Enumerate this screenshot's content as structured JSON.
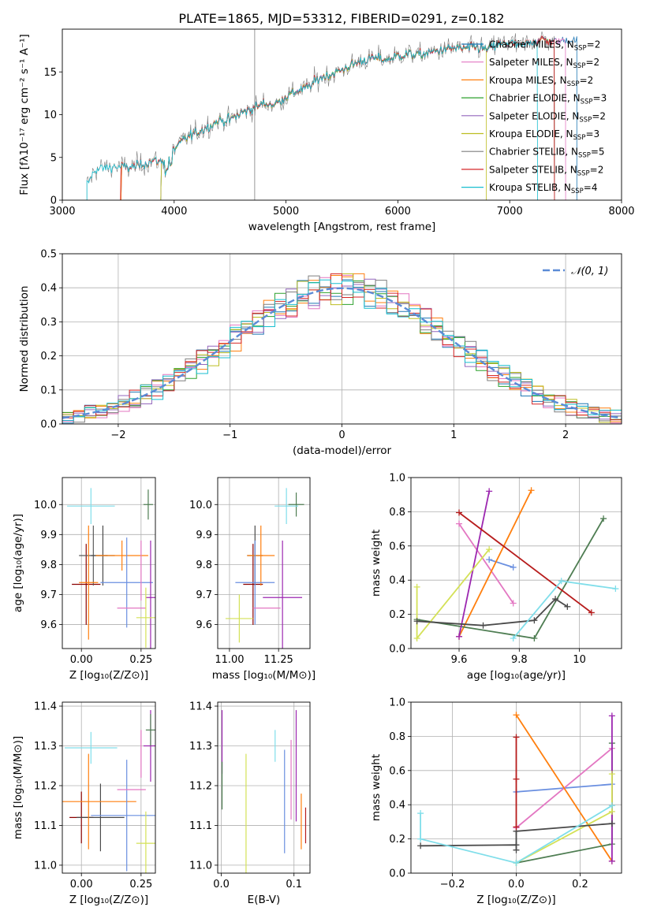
{
  "title": "PLATE=1865, MJD=53312, FIBERID=0291, z=0.182",
  "colors": {
    "chabrier_miles": "#1f77b4",
    "salpeter_miles": "#e377c2",
    "kroupa_miles": "#ff7f0e",
    "chabrier_elodie": "#2ca02c",
    "salpeter_elodie": "#9467bd",
    "kroupa_elodie": "#bcbd22",
    "chabrier_stelib": "#7f7f7f",
    "salpeter_stelib": "#d62728",
    "kroupa_stelib": "#17becf",
    "gaussian": "#5b8bd6",
    "grid": "#b0b0b0"
  },
  "chart_data": [
    {
      "id": "spectrum",
      "type": "line",
      "xlabel": "wavelength [Angstrom, rest frame]",
      "ylabel": "Flux [fλ10⁻¹⁷ erg cm⁻² s⁻¹ A⁻¹]",
      "xlim": [
        3000,
        8000
      ],
      "ylim": [
        0,
        20
      ],
      "xticks": [
        3000,
        4000,
        5000,
        6000,
        7000,
        8000
      ],
      "yticks": [
        0,
        5,
        10,
        15
      ],
      "grid": false,
      "legend_position": "top-right",
      "series": [
        {
          "name": "Chabrier MILES, N_SSP=2",
          "label_main": "Chabrier MILES, N",
          "label_sub": "SSP",
          "label_tail": "=2",
          "color": "#1f77b4"
        },
        {
          "name": "Salpeter MILES, N_SSP=2",
          "label_main": "Salpeter MILES, N",
          "label_sub": "SSP",
          "label_tail": "=2",
          "color": "#e377c2"
        },
        {
          "name": "Kroupa MILES, N_SSP=2",
          "label_main": "Kroupa MILES, N",
          "label_sub": "SSP",
          "label_tail": "=2",
          "color": "#ff7f0e"
        },
        {
          "name": "Chabrier ELODIE, N_SSP=3",
          "label_main": "Chabrier ELODIE, N",
          "label_sub": "SSP",
          "label_tail": "=3",
          "color": "#2ca02c"
        },
        {
          "name": "Salpeter ELODIE, N_SSP=2",
          "label_main": "Salpeter ELODIE, N",
          "label_sub": "SSP",
          "label_tail": "=2",
          "color": "#9467bd"
        },
        {
          "name": "Kroupa ELODIE, N_SSP=3",
          "label_main": "Kroupa ELODIE, N",
          "label_sub": "SSP",
          "label_tail": "=3",
          "color": "#bcbd22"
        },
        {
          "name": "Chabrier STELIB, N_SSP=5",
          "label_main": "Chabrier STELIB, N",
          "label_sub": "SSP",
          "label_tail": "=5",
          "color": "#7f7f7f"
        },
        {
          "name": "Salpeter STELIB, N_SSP=2",
          "label_main": "Salpeter STELIB, N",
          "label_sub": "SSP",
          "label_tail": "=2",
          "color": "#d62728"
        },
        {
          "name": "Kroupa STELIB, N_SSP=4",
          "label_main": "Kroupa STELIB, N",
          "label_sub": "SSP",
          "label_tail": "=4",
          "color": "#17becf"
        }
      ],
      "continuum": {
        "x": [
          3220,
          3300,
          3400,
          3500,
          3600,
          3700,
          3800,
          3900,
          4000,
          4100,
          4200,
          4300,
          4400,
          4500,
          4600,
          4700,
          4800,
          4900,
          5000,
          5100,
          5200,
          5300,
          5400,
          5500,
          5600,
          5700,
          5800,
          5900,
          6000,
          6100,
          6200,
          6300,
          6400,
          6500,
          6600,
          6700,
          6800,
          6900,
          7000,
          7100,
          7200,
          7300,
          7400,
          7500
        ],
        "y": [
          1.8,
          3.6,
          3.8,
          3.9,
          3.8,
          4.1,
          4.6,
          4.5,
          6.0,
          7.2,
          7.9,
          8.6,
          9.3,
          9.4,
          10.2,
          10.7,
          11.3,
          11.2,
          12.1,
          12.8,
          13.2,
          14.3,
          14.7,
          15.2,
          15.9,
          16.4,
          16.6,
          16.4,
          16.9,
          17.1,
          17.0,
          17.3,
          17.6,
          17.8,
          17.7,
          17.9,
          17.6,
          18.2,
          18.4,
          18.0,
          18.6,
          18.8,
          18.5,
          18.7
        ]
      },
      "series_range": [
        [
          3525,
          7600
        ],
        [
          3525,
          7500
        ],
        [
          3525,
          7400
        ],
        [
          3880,
          7400
        ],
        [
          3880,
          7400
        ],
        [
          3880,
          6790
        ],
        [
          3220,
          7400
        ],
        [
          3520,
          7400
        ],
        [
          3220,
          7250
        ]
      ]
    },
    {
      "id": "residuals",
      "type": "step",
      "xlabel": "(data-model)/error",
      "ylabel": "Normed distribution",
      "xlim": [
        -2.5,
        2.5
      ],
      "ylim": [
        0,
        0.5
      ],
      "xticks": [
        -2,
        -1,
        0,
        1,
        2
      ],
      "yticks": [
        0.0,
        0.1,
        0.2,
        0.3,
        0.4,
        0.5
      ],
      "grid": true,
      "legend_position": "top-right",
      "gaussian_label": "𝒩(0, 1)",
      "bin_start": -2.5,
      "bin_width": 0.1
    },
    {
      "id": "age-vs-Z",
      "type": "errorbar",
      "xlabel": "Z [log₁₀(Z/Z⊙)]",
      "ylabel": "age  [log₁₀(age/yr)]",
      "xlim": [
        -0.08,
        0.31
      ],
      "ylim": [
        9.52,
        10.09
      ],
      "xticks": [
        0.0,
        0.25
      ],
      "xtick_labels": [
        "0.00",
        "0.25"
      ],
      "yticks": [
        9.6,
        9.7,
        9.8,
        9.9,
        10.0
      ],
      "grid": true,
      "points": [
        {
          "x": 0.02,
          "y": 9.734,
          "xerr": 0.06,
          "yerr": 0.135,
          "color": "#8b0000"
        },
        {
          "x": 0.05,
          "y": 9.83,
          "xerr": 0.06,
          "yerr": 0.1,
          "color": "#5b5b5b"
        },
        {
          "x": 0.09,
          "y": 9.83,
          "xerr": 0.05,
          "yerr": 0.1,
          "color": "#4a4a4a"
        },
        {
          "x": 0.03,
          "y": 9.74,
          "xerr": 0.04,
          "yerr": 0.19,
          "color": "#ff7f0e"
        },
        {
          "x": 0.17,
          "y": 9.83,
          "xerr": 0.11,
          "yerr": 0.05,
          "color": "#ff7f0e"
        },
        {
          "x": 0.19,
          "y": 9.74,
          "xerr": 0.11,
          "yerr": 0.15,
          "color": "#6a8fe0"
        },
        {
          "x": 0.21,
          "y": 9.655,
          "xerr": 0.06,
          "yerr": 0.0,
          "color": "#e377c2"
        },
        {
          "x": 0.25,
          "y": 9.78,
          "xerr": 0.0,
          "yerr": 0.1,
          "color": "#e377c2"
        },
        {
          "x": 0.29,
          "y": 9.69,
          "xerr": 0.02,
          "yerr": 0.19,
          "color": "#9c27b0"
        },
        {
          "x": 0.27,
          "y": 9.623,
          "xerr": 0.04,
          "yerr": 0.1,
          "color": "#d4e157"
        },
        {
          "x": 0.28,
          "y": 10.0,
          "xerr": 0.02,
          "yerr": 0.05,
          "color": "#4e7d52"
        },
        {
          "x": 0.04,
          "y": 9.995,
          "xerr": 0.1,
          "yerr": 0.06,
          "color": "#80deea"
        }
      ]
    },
    {
      "id": "age-vs-mass",
      "type": "errorbar",
      "xlabel": "mass [log₁₀(M/M⊙)]",
      "ylabel": "",
      "xlim": [
        10.94,
        11.41
      ],
      "ylim": [
        9.52,
        10.09
      ],
      "xticks": [
        11.0,
        11.25
      ],
      "xtick_labels": [
        "11.00",
        "11.25"
      ],
      "yticks": [
        9.6,
        9.7,
        9.8,
        9.9,
        10.0
      ],
      "grid": true,
      "points": [
        {
          "x": 11.12,
          "y": 9.734,
          "xerr": 0.05,
          "yerr": 0.135,
          "color": "#8b0000"
        },
        {
          "x": 11.13,
          "y": 9.83,
          "xerr": 0.04,
          "yerr": 0.1,
          "color": "#4a4a4a"
        },
        {
          "x": 11.16,
          "y": 9.83,
          "xerr": 0.07,
          "yerr": 0.1,
          "color": "#ff7f0e"
        },
        {
          "x": 11.13,
          "y": 9.74,
          "xerr": 0.1,
          "yerr": 0.14,
          "color": "#6a8fe0"
        },
        {
          "x": 11.19,
          "y": 9.655,
          "xerr": 0.07,
          "yerr": 0.0,
          "color": "#e377c2"
        },
        {
          "x": 11.27,
          "y": 9.69,
          "xerr": 0.1,
          "yerr": 0.19,
          "color": "#9c27b0"
        },
        {
          "x": 11.05,
          "y": 9.62,
          "xerr": 0.07,
          "yerr": 0.08,
          "color": "#d4e157"
        },
        {
          "x": 11.34,
          "y": 10.0,
          "xerr": 0.04,
          "yerr": 0.04,
          "color": "#4e7d52"
        },
        {
          "x": 11.29,
          "y": 9.995,
          "xerr": 0.06,
          "yerr": 0.06,
          "color": "#80deea"
        }
      ]
    },
    {
      "id": "weight-vs-age",
      "type": "line",
      "xlabel": "age  [log₁₀(age/yr)]",
      "ylabel": "mass weight",
      "xlim": [
        9.44,
        10.14
      ],
      "ylim": [
        0,
        1
      ],
      "xticks": [
        9.6,
        9.8,
        10.0
      ],
      "yticks": [
        0.0,
        0.2,
        0.4,
        0.6,
        0.8,
        1.0
      ],
      "grid": true,
      "series": [
        {
          "color": "#6a8fe0",
          "x": [
            9.7,
            9.78
          ],
          "y": [
            0.52,
            0.475
          ]
        },
        {
          "color": "#e377c2",
          "x": [
            9.6,
            9.78
          ],
          "y": [
            0.73,
            0.265
          ]
        },
        {
          "color": "#ff7f0e",
          "x": [
            9.6,
            9.84
          ],
          "y": [
            0.07,
            0.925
          ]
        },
        {
          "color": "#4e7d52",
          "x": [
            9.46,
            9.85,
            10.08
          ],
          "y": [
            0.17,
            0.06,
            0.76
          ]
        },
        {
          "color": "#9c27b0",
          "x": [
            9.6,
            9.7
          ],
          "y": [
            0.07,
            0.92
          ]
        },
        {
          "color": "#d4e157",
          "x": [
            9.46,
            9.46,
            9.7
          ],
          "y": [
            0.36,
            0.06,
            0.58
          ]
        },
        {
          "color": "#4a4a4a",
          "x": [
            9.46,
            9.68,
            9.85,
            9.92,
            9.96
          ],
          "y": [
            0.16,
            0.135,
            0.165,
            0.29,
            0.245
          ]
        },
        {
          "color": "#b71c1c",
          "x": [
            9.6,
            10.04
          ],
          "y": [
            0.795,
            0.21
          ]
        },
        {
          "color": "#80deea",
          "x": [
            9.78,
            9.94,
            10.12
          ],
          "y": [
            0.06,
            0.395,
            0.35
          ]
        }
      ]
    },
    {
      "id": "mass-vs-Z",
      "type": "errorbar",
      "xlabel": "Z [log₁₀(Z/Z⊙)]",
      "ylabel": "mass [log₁₀(M/M⊙)]",
      "xlim": [
        -0.08,
        0.31
      ],
      "ylim": [
        10.98,
        11.41
      ],
      "xticks": [
        0.0,
        0.25
      ],
      "xtick_labels": [
        "0.00",
        "0.25"
      ],
      "yticks": [
        11.0,
        11.1,
        11.2,
        11.3,
        11.4
      ],
      "grid": true,
      "points": [
        {
          "x": 0.0,
          "y": 11.12,
          "xerr": 0.05,
          "yerr": 0.065,
          "color": "#8b0000"
        },
        {
          "x": 0.08,
          "y": 11.12,
          "xerr": 0.1,
          "yerr": 0.085,
          "color": "#4a4a4a"
        },
        {
          "x": 0.03,
          "y": 11.16,
          "xerr": 0.2,
          "yerr": 0.12,
          "color": "#ff7f0e"
        },
        {
          "x": 0.19,
          "y": 11.125,
          "xerr": 0.15,
          "yerr": 0.14,
          "color": "#6a8fe0"
        },
        {
          "x": 0.21,
          "y": 11.19,
          "xerr": 0.06,
          "yerr": 0.0,
          "color": "#e377c2"
        },
        {
          "x": 0.25,
          "y": 11.28,
          "xerr": 0.0,
          "yerr": 0.06,
          "color": "#e377c2"
        },
        {
          "x": 0.29,
          "y": 11.3,
          "xerr": 0.03,
          "yerr": 0.09,
          "color": "#9c27b0"
        },
        {
          "x": 0.27,
          "y": 11.055,
          "xerr": 0.04,
          "yerr": 0.08,
          "color": "#d4e157"
        },
        {
          "x": 0.29,
          "y": 11.34,
          "xerr": 0.02,
          "yerr": 0.04,
          "color": "#4e7d52"
        },
        {
          "x": 0.04,
          "y": 11.295,
          "xerr": 0.11,
          "yerr": 0.04,
          "color": "#80deea"
        }
      ]
    },
    {
      "id": "mass-vs-EBV",
      "type": "errorbar",
      "xlabel": "E(B-V)",
      "ylabel": "",
      "xlim": [
        -0.005,
        0.122
      ],
      "ylim": [
        10.98,
        11.41
      ],
      "xticks": [
        0.0,
        0.1
      ],
      "xtick_labels": [
        "0.0",
        "0.1"
      ],
      "yticks": [
        11.0,
        11.1,
        11.2,
        11.3,
        11.4
      ],
      "grid": true,
      "points": [
        {
          "x": 0.001,
          "y": 11.31,
          "xerr": 0.0,
          "yerr": 0.08,
          "color": "#9c27b0"
        },
        {
          "x": 0.001,
          "y": 11.2,
          "xerr": 0.0,
          "yerr": 0.06,
          "color": "#4e7d52"
        },
        {
          "x": 0.034,
          "y": 11.13,
          "xerr": 0.0,
          "yerr": 0.15,
          "color": "#d4e157"
        },
        {
          "x": 0.074,
          "y": 11.3,
          "xerr": 0.0,
          "yerr": 0.04,
          "color": "#80deea"
        },
        {
          "x": 0.087,
          "y": 11.16,
          "xerr": 0.0,
          "yerr": 0.13,
          "color": "#6a8fe0"
        },
        {
          "x": 0.096,
          "y": 11.215,
          "xerr": 0.0,
          "yerr": 0.1,
          "color": "#e377c2"
        },
        {
          "x": 0.103,
          "y": 11.25,
          "xerr": 0.0,
          "yerr": 0.14,
          "color": "#9c27b0"
        },
        {
          "x": 0.11,
          "y": 11.11,
          "xerr": 0.0,
          "yerr": 0.07,
          "color": "#ff7f0e"
        },
        {
          "x": 0.116,
          "y": 11.1,
          "xerr": 0.0,
          "yerr": 0.045,
          "color": "#b71c1c"
        }
      ]
    },
    {
      "id": "weight-vs-Z",
      "type": "line",
      "xlabel": "Z [log₁₀(Z/Z⊙)]",
      "ylabel": "mass weight",
      "xlim": [
        -0.33,
        0.33
      ],
      "ylim": [
        0,
        1
      ],
      "xticks": [
        -0.2,
        0.0,
        0.2
      ],
      "xtick_labels": [
        "−0.2",
        "0.0",
        "0.2"
      ],
      "yticks": [
        0.0,
        0.2,
        0.4,
        0.6,
        0.8,
        1.0
      ],
      "grid": true,
      "series": [
        {
          "color": "#6a8fe0",
          "x": [
            0.0,
            0.3
          ],
          "y": [
            0.475,
            0.52
          ]
        },
        {
          "color": "#e377c2",
          "x": [
            0.0,
            0.3
          ],
          "y": [
            0.265,
            0.73
          ]
        },
        {
          "color": "#ff7f0e",
          "x": [
            0.0,
            0.3
          ],
          "y": [
            0.925,
            0.07
          ]
        },
        {
          "color": "#4e7d52",
          "x": [
            0.0,
            0.3,
            0.3
          ],
          "y": [
            0.06,
            0.17,
            0.76
          ]
        },
        {
          "color": "#9c27b0",
          "x": [
            0.3,
            0.3
          ],
          "y": [
            0.07,
            0.92
          ]
        },
        {
          "color": "#d4e157",
          "x": [
            0.0,
            0.3,
            0.3
          ],
          "y": [
            0.06,
            0.36,
            0.58
          ]
        },
        {
          "color": "#4a4a4a",
          "x": [
            -0.3,
            0.0,
            0.0,
            0.0,
            0.3
          ],
          "y": [
            0.16,
            0.165,
            0.135,
            0.245,
            0.29
          ]
        },
        {
          "color": "#b71c1c",
          "x": [
            0.0,
            0.0,
            0.0
          ],
          "y": [
            0.27,
            0.55,
            0.795
          ]
        },
        {
          "color": "#80deea",
          "x": [
            -0.3,
            -0.3,
            0.0,
            0.3
          ],
          "y": [
            0.35,
            0.2,
            0.06,
            0.395
          ]
        }
      ]
    }
  ]
}
